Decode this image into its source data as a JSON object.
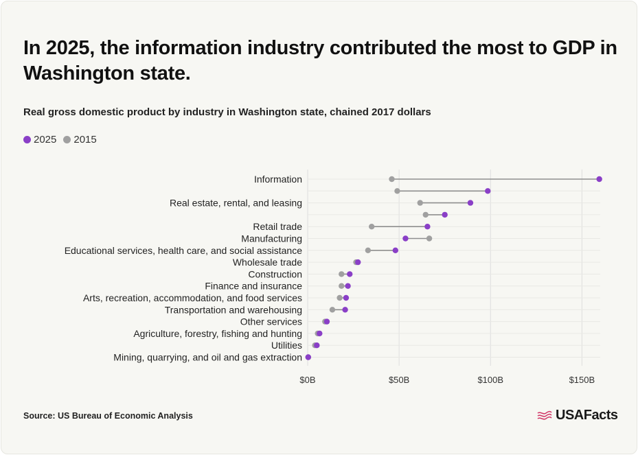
{
  "title": "In 2025, the information industry contributed the most to GDP in Washington state.",
  "subtitle": "Real gross domestic product by industry in Washington state, chained 2017 dollars",
  "source": "Source: US Bureau of Economic Analysis",
  "brand": {
    "name": "USAFacts",
    "icon": "usafacts-flag-icon"
  },
  "colors": {
    "2025": "#8a3fc7",
    "2015": "#a0a0a0",
    "connector": "#8e8e8e",
    "grid": "#dedede"
  },
  "chart_data": {
    "type": "dumbbell",
    "xlim": [
      0,
      160
    ],
    "xticks": [
      0,
      50,
      100,
      150
    ],
    "xtick_labels": [
      "$0B",
      "$50B",
      "$100B",
      "$150B"
    ],
    "legend": [
      "2025",
      "2015"
    ],
    "categories": [
      "Information",
      "",
      "Real estate, rental, and leasing",
      "",
      "Retail trade",
      "Manufacturing",
      "Educational services, health care, and social assistance",
      "Wholesale trade",
      "Construction",
      "Finance and insurance",
      "Arts, recreation, accommodation, and food services",
      "Transportation and warehousing",
      "Other services",
      "Agriculture, forestry, fishing and hunting",
      "Utilities",
      "Mining, quarrying, and oil and gas extraction"
    ],
    "series": [
      {
        "name": "2025",
        "values": [
          159.5,
          98.5,
          89.0,
          75.0,
          65.5,
          53.5,
          48.0,
          27.5,
          23.0,
          22.0,
          21.0,
          20.5,
          10.5,
          6.5,
          5.0,
          0.3
        ]
      },
      {
        "name": "2015",
        "values": [
          46.0,
          49.0,
          61.5,
          64.5,
          35.0,
          66.5,
          33.0,
          26.5,
          18.5,
          18.5,
          17.5,
          13.5,
          9.5,
          5.5,
          4.0,
          0.3
        ]
      }
    ]
  }
}
